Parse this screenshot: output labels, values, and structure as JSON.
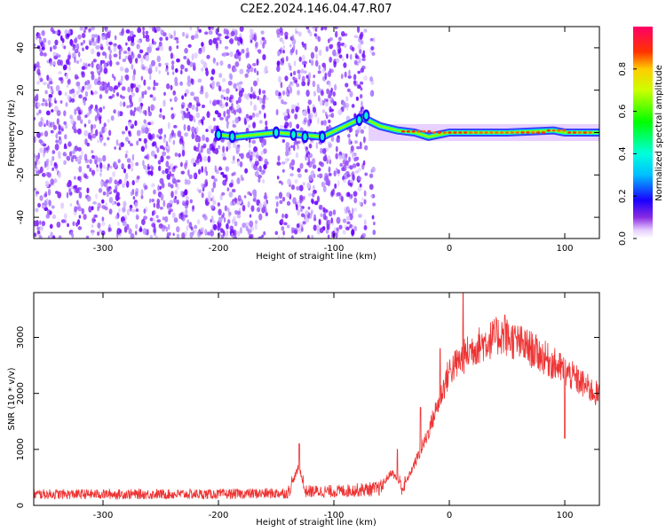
{
  "title": "C2E2.2024.146.04.47.R07",
  "chart_data": [
    {
      "type": "heatmap",
      "xlabel": "Height of straight line (km)",
      "ylabel": "Frequency (Hz)",
      "xlim": [
        -360,
        130
      ],
      "ylim": [
        -50,
        50
      ],
      "x_ticks": [
        -300,
        -200,
        -100,
        0,
        100
      ],
      "y_ticks": [
        -40,
        -20,
        0,
        20,
        40
      ],
      "grid": false,
      "noise_region_x": [
        -360,
        -65
      ],
      "noise_gaps_x": [
        [
          -158,
          -150
        ],
        [
          -72,
          -68
        ]
      ],
      "signal_track": [
        {
          "x": -200,
          "y": -1
        },
        {
          "x": -185,
          "y": -2
        },
        {
          "x": -150,
          "y": 0
        },
        {
          "x": -130,
          "y": -1
        },
        {
          "x": -110,
          "y": -2
        },
        {
          "x": -75,
          "y": 7
        },
        {
          "x": -60,
          "y": 3
        },
        {
          "x": -45,
          "y": 1
        },
        {
          "x": -30,
          "y": 0
        },
        {
          "x": -18,
          "y": -2
        },
        {
          "x": 0,
          "y": 0
        },
        {
          "x": 50,
          "y": 0
        },
        {
          "x": 90,
          "y": 1
        },
        {
          "x": 100,
          "y": 0
        },
        {
          "x": 130,
          "y": 0
        }
      ],
      "colorbar": {
        "label": "Normalized spectral amplitude",
        "range": [
          0,
          1
        ],
        "ticks": [
          0.0,
          0.2,
          0.4,
          0.6,
          0.8
        ]
      }
    },
    {
      "type": "line",
      "xlabel": "Height of straight line (km)",
      "ylabel": "SNR (10 * v/v)",
      "xlim": [
        -360,
        130
      ],
      "ylim": [
        0,
        3800
      ],
      "x_ticks": [
        -300,
        -200,
        -100,
        0,
        100
      ],
      "y_ticks": [
        0,
        1000,
        2000,
        3000
      ],
      "grid": false,
      "color": "#ee3333",
      "envelope": [
        {
          "x": -360,
          "y": 200
        },
        {
          "x": -300,
          "y": 200
        },
        {
          "x": -200,
          "y": 200
        },
        {
          "x": -140,
          "y": 220
        },
        {
          "x": -130,
          "y": 700
        },
        {
          "x": -125,
          "y": 250
        },
        {
          "x": -100,
          "y": 250
        },
        {
          "x": -60,
          "y": 300
        },
        {
          "x": -50,
          "y": 600
        },
        {
          "x": -40,
          "y": 300
        },
        {
          "x": -20,
          "y": 1200
        },
        {
          "x": -10,
          "y": 1800
        },
        {
          "x": 0,
          "y": 2400
        },
        {
          "x": 20,
          "y": 2800
        },
        {
          "x": 45,
          "y": 3050
        },
        {
          "x": 70,
          "y": 2800
        },
        {
          "x": 100,
          "y": 2400
        },
        {
          "x": 130,
          "y": 1950
        }
      ],
      "peaks": [
        {
          "x": -130,
          "y": 1100
        },
        {
          "x": -45,
          "y": 1000
        },
        {
          "x": -25,
          "y": 1750
        },
        {
          "x": -8,
          "y": 2800
        },
        {
          "x": 12,
          "y": 3800
        },
        {
          "x": 48,
          "y": 3400
        },
        {
          "x": 100,
          "y": 1200
        }
      ]
    }
  ]
}
